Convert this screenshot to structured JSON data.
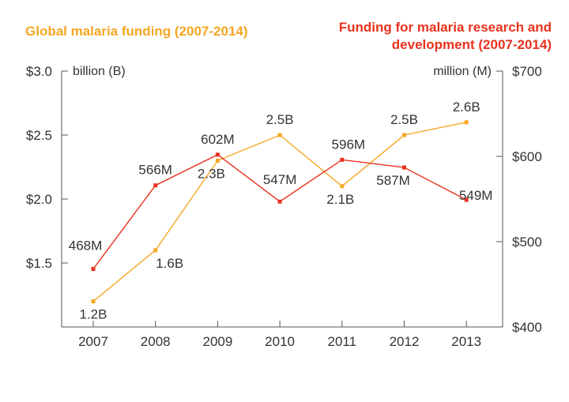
{
  "chart_data": {
    "type": "line",
    "title_left": "Global malaria funding (2007-2014)",
    "title_right": "Funding for malaria research and development (2007-2014)",
    "categories": [
      "2007",
      "2008",
      "2009",
      "2010",
      "2011",
      "2012",
      "2013"
    ],
    "left_axis": {
      "unit_label": "billion (B)",
      "ticks": [
        "$3.0",
        "$2.5",
        "$2.0",
        "$1.5"
      ],
      "tick_values": [
        3.0,
        2.5,
        2.0,
        1.5
      ],
      "ylim": [
        1.0,
        3.0
      ]
    },
    "right_axis": {
      "unit_label": "million (M)",
      "ticks": [
        "$700",
        "$600",
        "$500",
        "$400"
      ],
      "tick_values": [
        700,
        600,
        500,
        400
      ],
      "ylim": [
        400,
        700
      ]
    },
    "series": [
      {
        "name": "Global malaria funding (2007-2014)",
        "axis": "left",
        "color": "#F5A623",
        "values": [
          1.2,
          1.6,
          2.3,
          2.5,
          2.1,
          2.5,
          2.6
        ],
        "labels": [
          "1.2B",
          "1.6B",
          "2.3B",
          "2.5B",
          "2.1B",
          "2.5B",
          "2.6B"
        ]
      },
      {
        "name": "Funding for malaria research and development (2007-2014)",
        "axis": "right",
        "color": "#E8321E",
        "values": [
          468,
          566,
          602,
          547,
          596,
          587,
          549
        ],
        "labels": [
          "468M",
          "566M",
          "602M",
          "547M",
          "596M",
          "587M",
          "549M"
        ]
      }
    ],
    "grid": false
  }
}
